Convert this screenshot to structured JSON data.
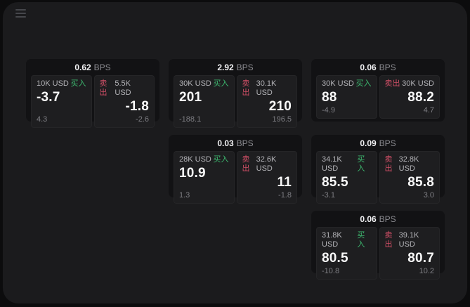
{
  "labels": {
    "bps_suffix": "BPS",
    "buy": "买入",
    "sell": "卖出"
  },
  "colors": {
    "buy_green": "#3dbb70",
    "sell_red": "#d04f66",
    "window_bg": "#1b1b1d",
    "card_bg": "#121214",
    "panel_bg": "#1e1e20"
  },
  "cards": [
    {
      "bps": "0.62",
      "buy": {
        "amount": "10K USD",
        "value": "-3.7",
        "secondary": "4.3"
      },
      "sell": {
        "amount": "5.5K USD",
        "value": "-1.8",
        "secondary": "-2.6"
      }
    },
    {
      "bps": "2.92",
      "buy": {
        "amount": "30K USD",
        "value": "201",
        "secondary": "-188.1"
      },
      "sell": {
        "amount": "30.1K USD",
        "value": "210",
        "secondary": "196.5"
      }
    },
    {
      "bps": "0.06",
      "buy": {
        "amount": "30K USD",
        "value": "88",
        "secondary": "-4.9"
      },
      "sell": {
        "amount": "30K USD",
        "value": "88.2",
        "secondary": "4.7"
      }
    },
    {
      "bps": "0.03",
      "buy": {
        "amount": "28K USD",
        "value": "10.9",
        "secondary": "1.3"
      },
      "sell": {
        "amount": "32.6K USD",
        "value": "11",
        "secondary": "-1.8"
      }
    },
    {
      "bps": "0.09",
      "buy": {
        "amount": "34.1K USD",
        "value": "85.5",
        "secondary": "-3.1"
      },
      "sell": {
        "amount": "32.8K USD",
        "value": "85.8",
        "secondary": "3.0"
      }
    },
    {
      "bps": "0.06",
      "buy": {
        "amount": "31.8K USD",
        "value": "80.5",
        "secondary": "-10.8"
      },
      "sell": {
        "amount": "39.1K USD",
        "value": "80.7",
        "secondary": "10.2"
      }
    }
  ]
}
